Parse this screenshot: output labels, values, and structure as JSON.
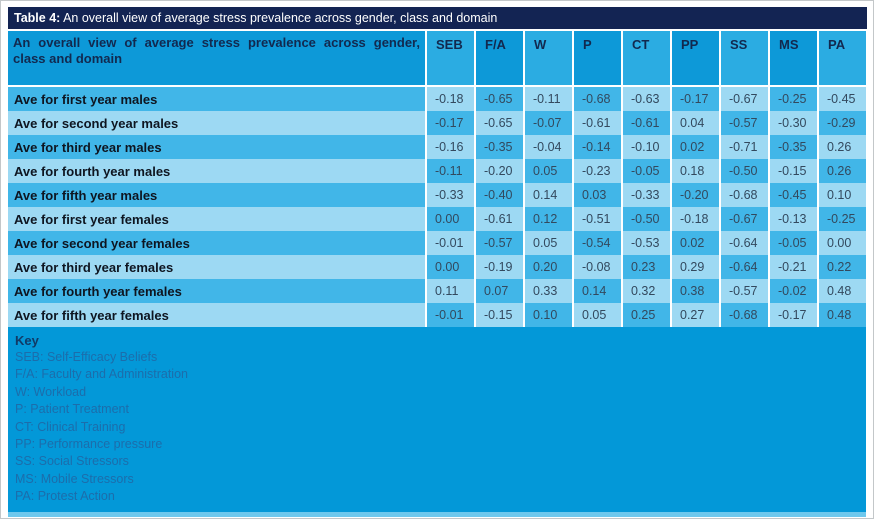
{
  "title": {
    "prefix": "Table 4:",
    "text": " An overall view of average stress prevalence across gender, class and domain"
  },
  "table": {
    "header_label": "An overall view of average stress prevalence across gender, class and domain",
    "columns": [
      "SEB",
      "F/A",
      "W",
      "P",
      "CT",
      "PP",
      "SS",
      "MS",
      "PA"
    ],
    "rows": [
      {
        "label": "Ave for first year males",
        "values": [
          "-0.18",
          "-0.65",
          "-0.11",
          "-0.68",
          "-0.63",
          "-0.17",
          "-0.67",
          "-0.25",
          "-0.45"
        ]
      },
      {
        "label": "Ave for second year males",
        "values": [
          "-0.17",
          "-0.65",
          "-0.07",
          "-0.61",
          "-0.61",
          "0.04",
          "-0.57",
          "-0.30",
          "-0.29"
        ]
      },
      {
        "label": "Ave for third year males",
        "values": [
          "-0.16",
          "-0.35",
          "-0.04",
          "-0.14",
          "-0.10",
          "0.02",
          "-0.71",
          "-0.35",
          "0.26"
        ]
      },
      {
        "label": "Ave for fourth year males",
        "values": [
          "-0.11",
          "-0.20",
          "0.05",
          "-0.23",
          "-0.05",
          "0.18",
          "-0.50",
          "-0.15",
          "0.26"
        ]
      },
      {
        "label": "Ave for fifth year males",
        "values": [
          "-0.33",
          "-0.40",
          "0.14",
          "0.03",
          "-0.33",
          "-0.20",
          "-0.68",
          "-0.45",
          "0.10"
        ]
      },
      {
        "label": "Ave for first year females",
        "values": [
          "0.00",
          "-0.61",
          "0.12",
          "-0.51",
          "-0.50",
          "-0.18",
          "-0.67",
          "-0.13",
          "-0.25"
        ]
      },
      {
        "label": "Ave for second year females",
        "values": [
          "-0.01",
          "-0.57",
          "0.05",
          "-0.54",
          "-0.53",
          "0.02",
          "-0.64",
          "-0.05",
          "0.00"
        ]
      },
      {
        "label": "Ave for third year females",
        "values": [
          "0.00",
          "-0.19",
          "0.20",
          "-0.08",
          "0.23",
          "0.29",
          "-0.64",
          "-0.21",
          "0.22"
        ]
      },
      {
        "label": "Ave for fourth year females",
        "values": [
          "0.11",
          "0.07",
          "0.33",
          "0.14",
          "0.32",
          "0.38",
          "-0.57",
          "-0.02",
          "0.48"
        ]
      },
      {
        "label": "Ave for fifth year females",
        "values": [
          "-0.01",
          "-0.15",
          "0.10",
          "0.05",
          "0.25",
          "0.27",
          "-0.68",
          "-0.17",
          "0.48"
        ]
      }
    ]
  },
  "key": {
    "title": "Key",
    "entries": [
      "SEB: Self-Efficacy Beliefs",
      "F/A: Faculty and Administration",
      "W: Workload",
      "P: Patient Treatment",
      "CT: Clinical Training",
      "PP: Performance pressure",
      "SS: Social Stressors",
      "MS: Mobile Stressors",
      "PA: Protest Action"
    ]
  },
  "colors": {
    "title_bar": "#132453",
    "header_dark": "#0d99d8",
    "header_light": "#2bace2",
    "cell_medium": "#41b6e8",
    "cell_light": "#9dd9f3",
    "key_background": "#0398d8",
    "bottom_strip": "#6ec8ed"
  }
}
